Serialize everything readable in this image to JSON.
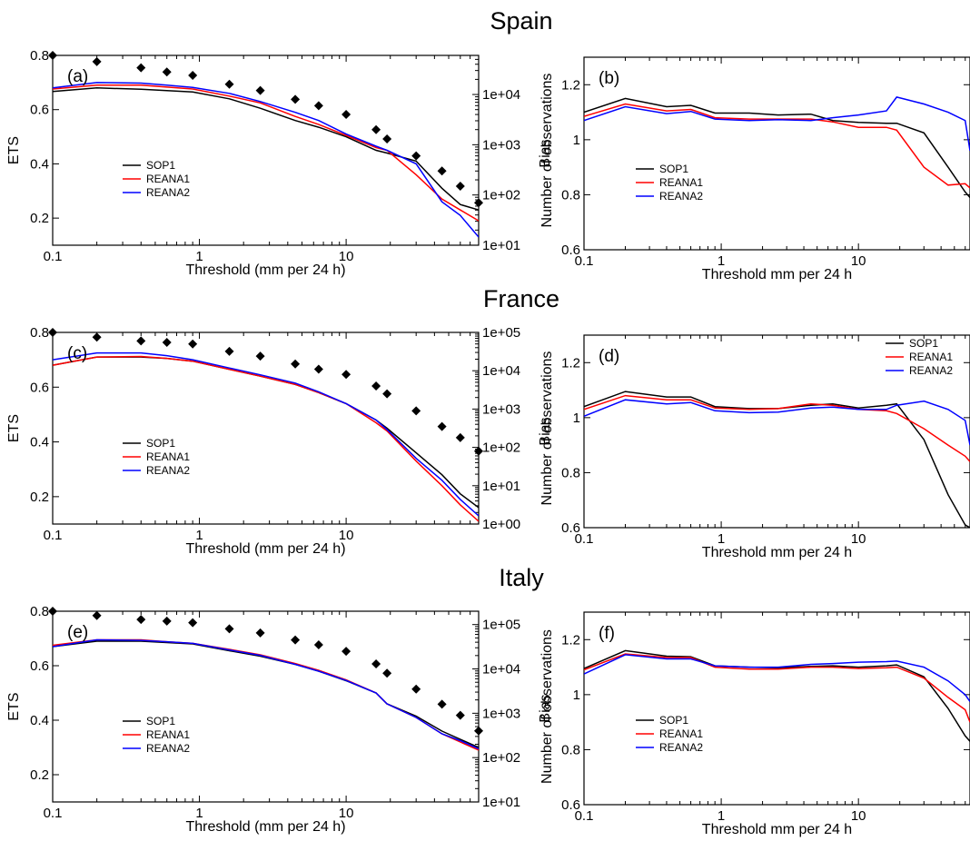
{
  "figure": {
    "regions": [
      "Spain",
      "France",
      "Italy"
    ]
  },
  "chart_data": [
    {
      "panel": "(a)",
      "region": "Spain",
      "type": "line",
      "xlabel": "Threshold (mm per 24 h)",
      "ylabel": "ETS",
      "y2label": "Number of observations",
      "xscale": "log",
      "xlim": [
        0.1,
        80
      ],
      "ylim": [
        0.1,
        0.8
      ],
      "y2scale": "log",
      "y2lim": [
        10,
        60000
      ],
      "xticks": [
        0.1,
        1,
        10
      ],
      "xticklabels": [
        "0.1",
        "1",
        "10"
      ],
      "yticks": [
        0.2,
        0.4,
        0.6,
        0.8
      ],
      "yticklabels": [
        "0.2",
        "0.4",
        "0.6",
        "0.8"
      ],
      "y2ticks": [
        10,
        100,
        1000,
        10000
      ],
      "y2ticklabels": [
        "1e+01",
        "1e+02",
        "1e+03",
        "1e+04"
      ],
      "legend": [
        "SOP1",
        "REANA1",
        "REANA2"
      ],
      "legend_position": "lower-left",
      "x": [
        0.1,
        0.2,
        0.4,
        0.6,
        0.9,
        1.6,
        2.6,
        4.5,
        6.5,
        10,
        16,
        19,
        30,
        45,
        60,
        80
      ],
      "series": [
        {
          "name": "SOP1",
          "color": "#000000",
          "values": [
            0.667,
            0.68,
            0.675,
            0.67,
            0.665,
            0.64,
            0.605,
            0.56,
            0.535,
            0.5,
            0.45,
            0.44,
            0.41,
            0.31,
            0.25,
            0.23
          ]
        },
        {
          "name": "REANA1",
          "color": "#ff0000",
          "values": [
            0.676,
            0.69,
            0.69,
            0.683,
            0.676,
            0.65,
            0.625,
            0.575,
            0.545,
            0.505,
            0.46,
            0.45,
            0.36,
            0.27,
            0.23,
            0.19
          ]
        },
        {
          "name": "REANA2",
          "color": "#0000ff",
          "values": [
            0.68,
            0.7,
            0.698,
            0.69,
            0.682,
            0.66,
            0.63,
            0.59,
            0.56,
            0.51,
            0.465,
            0.45,
            0.4,
            0.26,
            0.21,
            0.13
          ]
        }
      ],
      "observations": {
        "x": [
          0.1,
          0.2,
          0.4,
          0.6,
          0.9,
          1.6,
          2.6,
          4.5,
          6.5,
          10,
          16,
          19,
          30,
          45,
          60,
          80
        ],
        "values": [
          60000,
          45000,
          34000,
          28000,
          24000,
          16000,
          12000,
          8000,
          6000,
          4000,
          2000,
          1300,
          600,
          300,
          150,
          70
        ]
      }
    },
    {
      "panel": "(b)",
      "region": "Spain",
      "type": "line",
      "xlabel": "Threshold mm per 24 h",
      "ylabel": "Bias",
      "xscale": "log",
      "xlim": [
        0.1,
        65
      ],
      "ylim": [
        0.6,
        1.3
      ],
      "xticks": [
        0.1,
        1,
        10
      ],
      "xticklabels": [
        "0.1",
        "1",
        "10"
      ],
      "yticks": [
        0.6,
        0.8,
        1.0,
        1.2
      ],
      "yticklabels": [
        "0.6",
        "0.8",
        "1",
        "1.2"
      ],
      "legend": [
        "SOP1",
        "REANA1",
        "REANA2"
      ],
      "legend_position": "lower-left",
      "x": [
        0.1,
        0.2,
        0.4,
        0.6,
        0.9,
        1.6,
        2.6,
        4.5,
        6.5,
        10,
        16,
        19,
        30,
        45,
        60,
        65
      ],
      "series": [
        {
          "name": "SOP1",
          "color": "#000000",
          "values": [
            1.1,
            1.15,
            1.12,
            1.125,
            1.097,
            1.097,
            1.09,
            1.093,
            1.07,
            1.063,
            1.06,
            1.06,
            1.025,
            0.9,
            0.81,
            0.79
          ]
        },
        {
          "name": "REANA1",
          "color": "#ff0000",
          "values": [
            1.085,
            1.13,
            1.105,
            1.11,
            1.08,
            1.075,
            1.075,
            1.075,
            1.065,
            1.045,
            1.045,
            1.035,
            0.9,
            0.835,
            0.84,
            0.825
          ]
        },
        {
          "name": "REANA2",
          "color": "#0000ff",
          "values": [
            1.07,
            1.12,
            1.095,
            1.103,
            1.075,
            1.07,
            1.073,
            1.07,
            1.08,
            1.09,
            1.105,
            1.155,
            1.13,
            1.1,
            1.07,
            0.96
          ]
        }
      ]
    },
    {
      "panel": "(c)",
      "region": "France",
      "type": "line",
      "xlabel": "Threshold (mm per 24 h)",
      "ylabel": "ETS",
      "y2label": "Number of observations",
      "xscale": "log",
      "xlim": [
        0.1,
        80
      ],
      "ylim": [
        0.1,
        0.8
      ],
      "y2scale": "log",
      "y2lim": [
        1,
        100000
      ],
      "xticks": [
        0.1,
        1,
        10
      ],
      "xticklabels": [
        "0.1",
        "1",
        "10"
      ],
      "yticks": [
        0.2,
        0.4,
        0.6,
        0.8
      ],
      "yticklabels": [
        "0.2",
        "0.4",
        "0.6",
        "0.8"
      ],
      "y2ticks": [
        1,
        10,
        100,
        1000,
        10000,
        100000
      ],
      "y2ticklabels": [
        "1e+00",
        "1e+01",
        "1e+02",
        "1e+03",
        "1e+04",
        "1e+05"
      ],
      "legend": [
        "SOP1",
        "REANA1",
        "REANA2"
      ],
      "legend_position": "lower-left",
      "x": [
        0.1,
        0.2,
        0.4,
        0.6,
        0.9,
        1.6,
        2.6,
        4.5,
        6.5,
        10,
        16,
        19,
        30,
        45,
        60,
        80
      ],
      "series": [
        {
          "name": "SOP1",
          "color": "#000000",
          "values": [
            0.68,
            0.71,
            0.71,
            0.705,
            0.695,
            0.665,
            0.64,
            0.61,
            0.58,
            0.54,
            0.48,
            0.45,
            0.36,
            0.28,
            0.21,
            0.16
          ]
        },
        {
          "name": "REANA1",
          "color": "#ff0000",
          "values": [
            0.68,
            0.71,
            0.712,
            0.705,
            0.695,
            0.665,
            0.64,
            0.61,
            0.58,
            0.54,
            0.47,
            0.44,
            0.33,
            0.24,
            0.17,
            0.11
          ]
        },
        {
          "name": "REANA2",
          "color": "#0000ff",
          "values": [
            0.7,
            0.725,
            0.725,
            0.715,
            0.7,
            0.67,
            0.645,
            0.615,
            0.583,
            0.54,
            0.48,
            0.445,
            0.34,
            0.26,
            0.19,
            0.13
          ]
        }
      ],
      "observations": {
        "x": [
          0.1,
          0.2,
          0.4,
          0.6,
          0.9,
          1.6,
          2.6,
          4.5,
          6.5,
          10,
          16,
          19,
          30,
          45,
          60,
          80
        ],
        "values": [
          100000,
          75000,
          60000,
          55000,
          50000,
          32000,
          24000,
          15000,
          11000,
          8000,
          4000,
          2500,
          900,
          350,
          180,
          80
        ]
      }
    },
    {
      "panel": "(d)",
      "region": "France",
      "type": "line",
      "xlabel": "Threshold mm per 24 h",
      "ylabel": "Bias",
      "xscale": "log",
      "xlim": [
        0.1,
        65
      ],
      "ylim": [
        0.6,
        1.3
      ],
      "xticks": [
        0.1,
        1,
        10
      ],
      "xticklabels": [
        "0.1",
        "1",
        "10"
      ],
      "yticks": [
        0.6,
        0.8,
        1.0,
        1.2
      ],
      "yticklabels": [
        "0.6",
        "0.8",
        "1",
        "1.2"
      ],
      "legend": [
        "SOP1",
        "REANA1",
        "REANA2"
      ],
      "legend_position": "top-right",
      "x": [
        0.1,
        0.2,
        0.4,
        0.6,
        0.9,
        1.6,
        2.6,
        4.5,
        6.5,
        10,
        16,
        19,
        30,
        45,
        60,
        65
      ],
      "series": [
        {
          "name": "SOP1",
          "color": "#000000",
          "values": [
            1.04,
            1.095,
            1.075,
            1.075,
            1.04,
            1.033,
            1.033,
            1.045,
            1.05,
            1.035,
            1.045,
            1.05,
            0.92,
            0.72,
            0.61,
            0.6
          ]
        },
        {
          "name": "REANA1",
          "color": "#ff0000",
          "values": [
            1.03,
            1.08,
            1.065,
            1.065,
            1.035,
            1.03,
            1.033,
            1.05,
            1.045,
            1.03,
            1.025,
            1.015,
            0.96,
            0.9,
            0.86,
            0.84
          ]
        },
        {
          "name": "REANA2",
          "color": "#0000ff",
          "values": [
            1.005,
            1.065,
            1.05,
            1.055,
            1.025,
            1.018,
            1.02,
            1.035,
            1.038,
            1.03,
            1.03,
            1.045,
            1.06,
            1.03,
            0.99,
            0.9
          ]
        }
      ]
    },
    {
      "panel": "(e)",
      "region": "Italy",
      "type": "line",
      "xlabel": "Threshold (mm per 24 h)",
      "ylabel": "ETS",
      "y2label": "Number of observations",
      "xscale": "log",
      "xlim": [
        0.1,
        80
      ],
      "ylim": [
        0.1,
        0.8
      ],
      "y2scale": "log",
      "y2lim": [
        10,
        200000
      ],
      "xticks": [
        0.1,
        1,
        10
      ],
      "xticklabels": [
        "0.1",
        "1",
        "10"
      ],
      "yticks": [
        0.2,
        0.4,
        0.6,
        0.8
      ],
      "yticklabels": [
        "0.2",
        "0.4",
        "0.6",
        "0.8"
      ],
      "y2ticks": [
        10,
        100,
        1000,
        10000,
        100000
      ],
      "y2ticklabels": [
        "1e+01",
        "1e+02",
        "1e+03",
        "1e+04",
        "1e+05"
      ],
      "legend": [
        "SOP1",
        "REANA1",
        "REANA2"
      ],
      "legend_position": "lower-left",
      "x": [
        0.1,
        0.2,
        0.4,
        0.6,
        0.9,
        1.6,
        2.6,
        4.5,
        6.5,
        10,
        16,
        19,
        30,
        45,
        60,
        80
      ],
      "series": [
        {
          "name": "SOP1",
          "color": "#000000",
          "values": [
            0.67,
            0.69,
            0.69,
            0.685,
            0.68,
            0.655,
            0.635,
            0.605,
            0.58,
            0.545,
            0.5,
            0.46,
            0.415,
            0.36,
            0.33,
            0.3
          ]
        },
        {
          "name": "REANA1",
          "color": "#ff0000",
          "values": [
            0.675,
            0.695,
            0.695,
            0.688,
            0.682,
            0.66,
            0.64,
            0.608,
            0.583,
            0.548,
            0.5,
            0.46,
            0.41,
            0.35,
            0.32,
            0.29
          ]
        },
        {
          "name": "REANA2",
          "color": "#0000ff",
          "values": [
            0.67,
            0.695,
            0.693,
            0.688,
            0.682,
            0.658,
            0.638,
            0.605,
            0.58,
            0.546,
            0.5,
            0.46,
            0.41,
            0.35,
            0.325,
            0.295
          ]
        }
      ],
      "observations": {
        "x": [
          0.1,
          0.2,
          0.4,
          0.6,
          0.9,
          1.6,
          2.6,
          4.5,
          6.5,
          10,
          16,
          19,
          30,
          45,
          60,
          80
        ],
        "values": [
          200000,
          160000,
          130000,
          120000,
          110000,
          80000,
          65000,
          45000,
          35000,
          25000,
          13000,
          8000,
          3500,
          1600,
          900,
          400
        ]
      }
    },
    {
      "panel": "(f)",
      "region": "Italy",
      "type": "line",
      "xlabel": "Threshold mm per 24 h",
      "ylabel": "Bias",
      "xscale": "log",
      "xlim": [
        0.1,
        65
      ],
      "ylim": [
        0.6,
        1.3
      ],
      "xticks": [
        0.1,
        1,
        10
      ],
      "xticklabels": [
        "0.1",
        "1",
        "10"
      ],
      "yticks": [
        0.6,
        0.8,
        1.0,
        1.2
      ],
      "yticklabels": [
        "0.6",
        "0.8",
        "1",
        "1.2"
      ],
      "legend": [
        "SOP1",
        "REANA1",
        "REANA2"
      ],
      "legend_position": "lower-left",
      "x": [
        0.1,
        0.2,
        0.4,
        0.6,
        0.9,
        1.6,
        2.6,
        4.5,
        6.5,
        10,
        16,
        19,
        30,
        45,
        60,
        65
      ],
      "series": [
        {
          "name": "SOP1",
          "color": "#000000",
          "values": [
            1.095,
            1.16,
            1.14,
            1.138,
            1.105,
            1.1,
            1.098,
            1.103,
            1.105,
            1.1,
            1.105,
            1.108,
            1.065,
            0.95,
            0.85,
            0.83
          ]
        },
        {
          "name": "REANA1",
          "color": "#ff0000",
          "values": [
            1.09,
            1.148,
            1.135,
            1.135,
            1.1,
            1.093,
            1.093,
            1.1,
            1.1,
            1.095,
            1.098,
            1.1,
            1.06,
            0.99,
            0.945,
            0.9
          ]
        },
        {
          "name": "REANA2",
          "color": "#0000ff",
          "values": [
            1.075,
            1.145,
            1.13,
            1.13,
            1.105,
            1.1,
            1.1,
            1.11,
            1.113,
            1.118,
            1.12,
            1.122,
            1.1,
            1.05,
            1.0,
            0.975
          ]
        }
      ]
    }
  ]
}
